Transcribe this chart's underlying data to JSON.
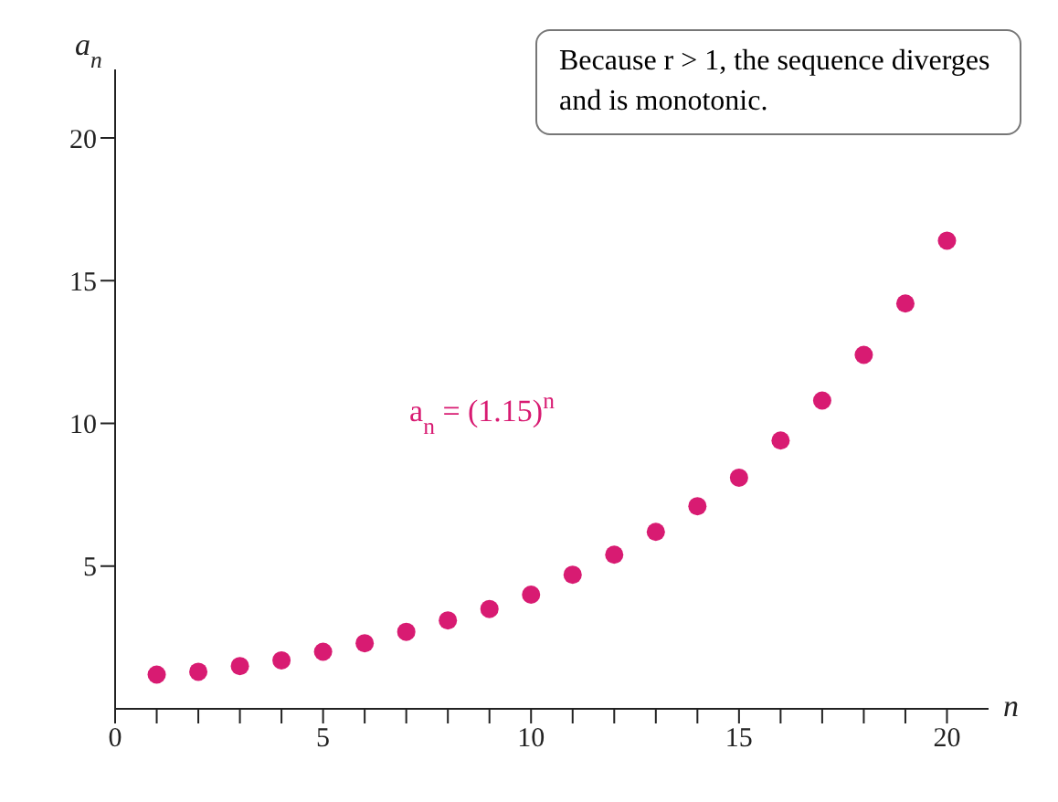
{
  "chart_data": {
    "type": "scatter",
    "xlabel": "n",
    "ylabel": "a$_{n}$",
    "x": [
      1,
      2,
      3,
      4,
      5,
      6,
      7,
      8,
      9,
      10,
      11,
      12,
      13,
      14,
      15,
      16,
      17,
      18,
      19,
      20
    ],
    "series": [
      {
        "name": "a$_{n}$ = (1.15)$^{n}$",
        "color": "#d81b72",
        "values": [
          1.2,
          1.3,
          1.5,
          1.7,
          2.0,
          2.3,
          2.7,
          3.1,
          3.5,
          4.0,
          4.7,
          5.4,
          6.2,
          7.1,
          8.1,
          9.4,
          10.8,
          12.4,
          14.2,
          16.4
        ]
      }
    ],
    "xlim": [
      0,
      21
    ],
    "ylim": [
      0,
      22.4
    ],
    "xticks": [
      0,
      {
        "value": 1,
        "label": null
      },
      {
        "value": 2,
        "label": null
      },
      {
        "value": 3,
        "label": null
      },
      {
        "value": 4,
        "label": null
      },
      5,
      {
        "value": 6,
        "label": null
      },
      {
        "value": 7,
        "label": null
      },
      {
        "value": 8,
        "label": null
      },
      {
        "value": 9,
        "label": null
      },
      10,
      {
        "value": 11,
        "label": null
      },
      {
        "value": 12,
        "label": null
      },
      {
        "value": 13,
        "label": null
      },
      {
        "value": 14,
        "label": null
      },
      15,
      {
        "value": 16,
        "label": null
      },
      {
        "value": 17,
        "label": null
      },
      {
        "value": 18,
        "label": null
      },
      {
        "value": 19,
        "label": null
      },
      20
    ],
    "yticks": [
      5,
      10,
      15,
      20
    ],
    "marker": "circle",
    "annotations": [
      "Because r > 1, the sequence diverges and is monotonic."
    ]
  }
}
